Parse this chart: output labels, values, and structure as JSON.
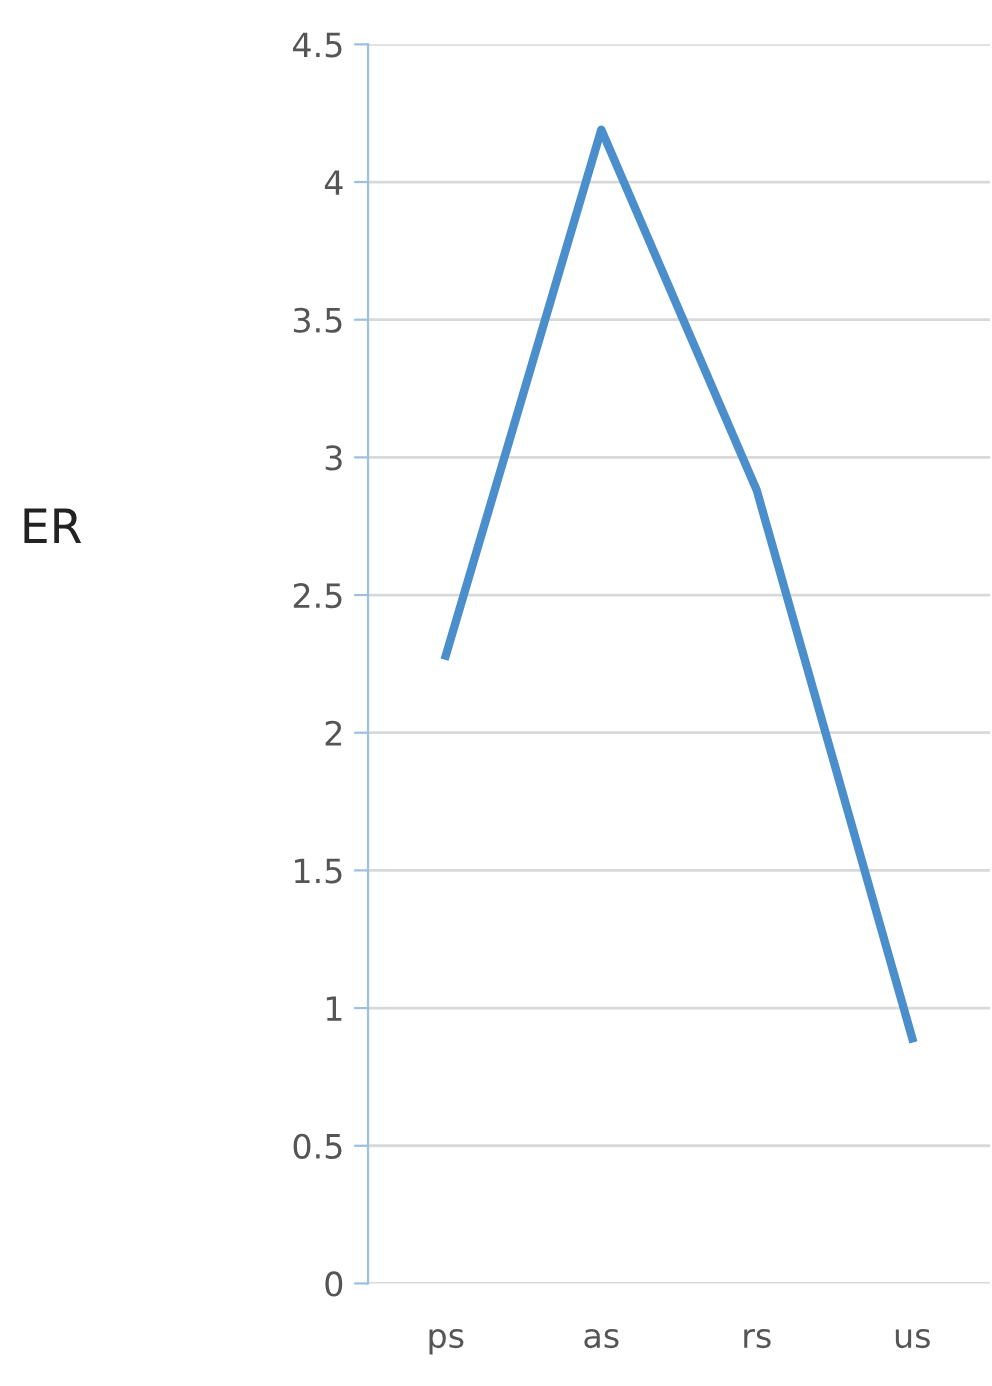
{
  "chart_data": {
    "type": "line",
    "ylabel": "ER",
    "categories": [
      "ps",
      "as",
      "rs",
      "us"
    ],
    "series": [
      {
        "color": "#4a8fcc",
        "values": [
          2.28,
          4.19,
          2.88,
          0.89
        ]
      }
    ],
    "ylim": [
      0,
      4.5
    ],
    "yticks": [
      0,
      0.5,
      1,
      1.5,
      2,
      2.5,
      3,
      3.5,
      4,
      4.5
    ],
    "grid": "y",
    "marker": "none",
    "line_style": "solid"
  }
}
